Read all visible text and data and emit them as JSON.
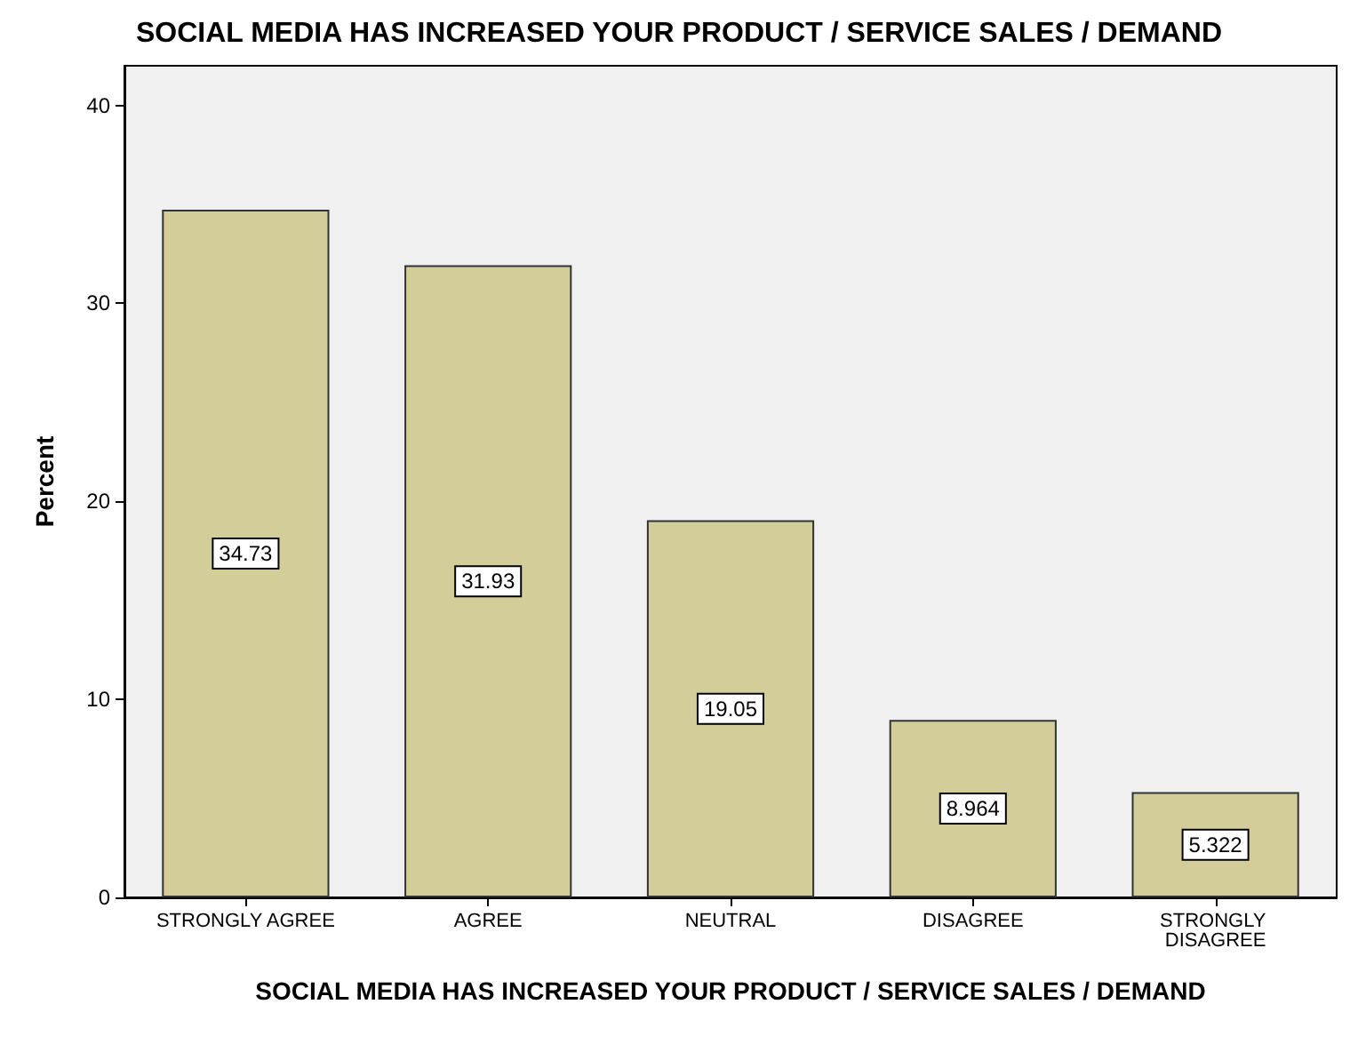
{
  "chart_data": {
    "type": "bar",
    "title": "SOCIAL MEDIA HAS INCREASED YOUR PRODUCT / SERVICE SALES / DEMAND",
    "xlabel": "SOCIAL MEDIA HAS INCREASED YOUR PRODUCT / SERVICE SALES / DEMAND",
    "ylabel": "Percent",
    "categories": [
      "STRONGLY AGREE",
      "AGREE",
      "NEUTRAL",
      "DISAGREE",
      "STRONGLY DISAGREE"
    ],
    "values": [
      34.73,
      31.93,
      19.05,
      8.964,
      5.322
    ],
    "color": "#d3ce99",
    "ylim": [
      0,
      42
    ],
    "yticks": [
      0,
      10,
      20,
      30,
      40
    ],
    "grid": false,
    "data_labels": true
  }
}
